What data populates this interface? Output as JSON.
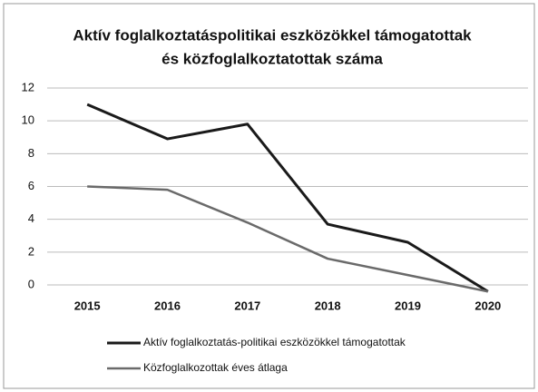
{
  "chart_data": {
    "type": "line",
    "title": [
      "Aktív foglalkoztatáspolitikai eszközökkel támogatottak",
      "és közfoglalkoztatottak száma"
    ],
    "categories": [
      "2015",
      "2016",
      "2017",
      "2018",
      "2019",
      "2020"
    ],
    "series": [
      {
        "name": "Aktív foglalkoztatás-politikai eszközökkel támogatottak",
        "color": "#1a1a1a",
        "values": [
          11,
          8.9,
          9.8,
          3.7,
          2.6,
          -0.4
        ]
      },
      {
        "name": "Közfoglalkozottak éves átlaga",
        "color": "#6a6a6a",
        "values": [
          6,
          5.8,
          3.8,
          1.6,
          0.6,
          -0.4
        ]
      }
    ],
    "ylim": [
      0,
      12
    ],
    "yticks": [
      0,
      2,
      4,
      6,
      8,
      10,
      12
    ],
    "grid": true,
    "legend": "bottom"
  }
}
